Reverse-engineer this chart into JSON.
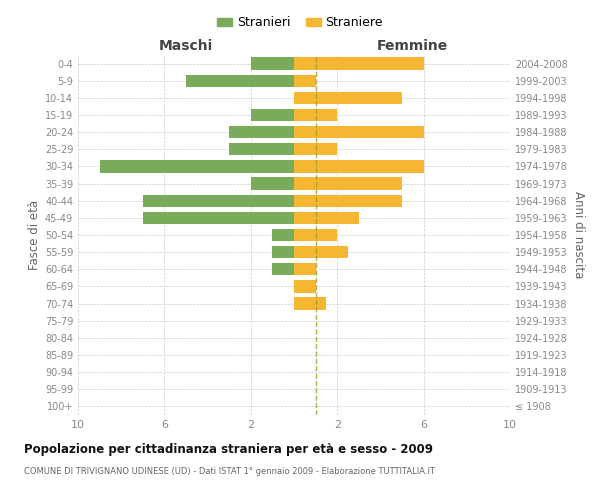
{
  "age_groups": [
    "100+",
    "95-99",
    "90-94",
    "85-89",
    "80-84",
    "75-79",
    "70-74",
    "65-69",
    "60-64",
    "55-59",
    "50-54",
    "45-49",
    "40-44",
    "35-39",
    "30-34",
    "25-29",
    "20-24",
    "15-19",
    "10-14",
    "5-9",
    "0-4"
  ],
  "birth_years": [
    "≤ 1908",
    "1909-1913",
    "1914-1918",
    "1919-1923",
    "1924-1928",
    "1929-1933",
    "1934-1938",
    "1939-1943",
    "1944-1948",
    "1949-1953",
    "1954-1958",
    "1959-1963",
    "1964-1968",
    "1969-1973",
    "1974-1978",
    "1979-1983",
    "1984-1988",
    "1989-1993",
    "1994-1998",
    "1999-2003",
    "2004-2008"
  ],
  "maschi": [
    0,
    0,
    0,
    0,
    0,
    0,
    0,
    0,
    1,
    1,
    1,
    7,
    7,
    2,
    9,
    3,
    3,
    2,
    0,
    5,
    2
  ],
  "femmine": [
    0,
    0,
    0,
    0,
    0,
    0,
    1.5,
    1,
    1,
    2.5,
    2,
    3,
    5,
    5,
    6,
    2,
    6,
    2,
    5,
    1,
    6
  ],
  "color_maschi": "#7aab5a",
  "color_femmine": "#f5b731",
  "xlim": 10,
  "title": "Popolazione per cittadinanza straniera per età e sesso - 2009",
  "subtitle": "COMUNE DI TRIVIGNANO UDINESE (UD) - Dati ISTAT 1° gennaio 2009 - Elaborazione TUTTITALIA.IT",
  "ylabel_left": "Fasce di età",
  "ylabel_right": "Anni di nascita",
  "xlabel_left": "Maschi",
  "xlabel_right": "Femmine",
  "legend_maschi": "Stranieri",
  "legend_femmine": "Straniere",
  "background_color": "#ffffff",
  "grid_color": "#cccccc",
  "dashed_line_color": "#9a9a2a"
}
